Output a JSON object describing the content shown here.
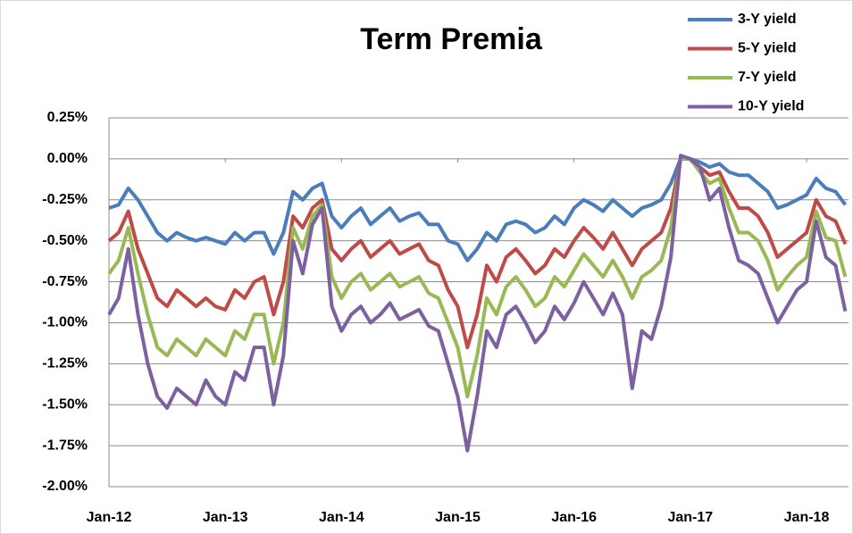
{
  "chart_data": {
    "type": "line",
    "title": "Term Premia",
    "categories": [
      "Jan-12",
      null,
      null,
      null,
      null,
      null,
      null,
      null,
      null,
      null,
      null,
      null,
      "Jan-13",
      null,
      null,
      null,
      null,
      null,
      null,
      null,
      null,
      null,
      null,
      null,
      "Jan-14",
      null,
      null,
      null,
      null,
      null,
      null,
      null,
      null,
      null,
      null,
      null,
      "Jan-15",
      null,
      null,
      null,
      null,
      null,
      null,
      null,
      null,
      null,
      null,
      null,
      "Jan-16",
      null,
      null,
      null,
      null,
      null,
      null,
      null,
      null,
      null,
      null,
      null,
      "Jan-17",
      null,
      null,
      null,
      null,
      null,
      null,
      null,
      null,
      null,
      null,
      null,
      "Jan-18",
      null,
      null,
      null,
      null
    ],
    "series": [
      {
        "name": "3-Y yield",
        "color": "#4a7ebb",
        "values": [
          -0.3,
          -0.28,
          -0.18,
          -0.25,
          -0.35,
          -0.45,
          -0.5,
          -0.45,
          -0.48,
          -0.5,
          -0.48,
          -0.5,
          -0.52,
          -0.45,
          -0.5,
          -0.45,
          -0.45,
          -0.58,
          -0.45,
          -0.2,
          -0.25,
          -0.18,
          -0.15,
          -0.35,
          -0.42,
          -0.35,
          -0.3,
          -0.4,
          -0.35,
          -0.3,
          -0.38,
          -0.35,
          -0.33,
          -0.4,
          -0.4,
          -0.5,
          -0.52,
          -0.62,
          -0.55,
          -0.45,
          -0.5,
          -0.4,
          -0.38,
          -0.4,
          -0.45,
          -0.42,
          -0.35,
          -0.4,
          -0.3,
          -0.25,
          -0.28,
          -0.32,
          -0.25,
          -0.3,
          -0.35,
          -0.3,
          -0.28,
          -0.25,
          -0.15,
          0.0,
          0.0,
          -0.02,
          -0.05,
          -0.03,
          -0.08,
          -0.1,
          -0.1,
          -0.15,
          -0.2,
          -0.3,
          -0.28,
          -0.25,
          -0.22,
          -0.12,
          -0.18,
          -0.2,
          -0.28
        ]
      },
      {
        "name": "5-Y yield",
        "color": "#be4b48",
        "values": [
          -0.5,
          -0.45,
          -0.32,
          -0.55,
          -0.7,
          -0.85,
          -0.9,
          -0.8,
          -0.85,
          -0.9,
          -0.85,
          -0.9,
          -0.92,
          -0.8,
          -0.85,
          -0.75,
          -0.72,
          -0.95,
          -0.75,
          -0.35,
          -0.42,
          -0.3,
          -0.25,
          -0.55,
          -0.62,
          -0.55,
          -0.5,
          -0.6,
          -0.55,
          -0.5,
          -0.58,
          -0.55,
          -0.52,
          -0.62,
          -0.65,
          -0.8,
          -0.9,
          -1.15,
          -0.95,
          -0.65,
          -0.75,
          -0.6,
          -0.55,
          -0.62,
          -0.7,
          -0.65,
          -0.55,
          -0.6,
          -0.5,
          -0.42,
          -0.48,
          -0.55,
          -0.45,
          -0.55,
          -0.65,
          -0.55,
          -0.5,
          -0.45,
          -0.3,
          0.0,
          0.0,
          -0.05,
          -0.1,
          -0.08,
          -0.2,
          -0.3,
          -0.3,
          -0.35,
          -0.45,
          -0.6,
          -0.55,
          -0.5,
          -0.45,
          -0.25,
          -0.35,
          -0.38,
          -0.52
        ]
      },
      {
        "name": "7-Y yield",
        "color": "#98b954",
        "values": [
          -0.7,
          -0.62,
          -0.42,
          -0.7,
          -0.95,
          -1.15,
          -1.2,
          -1.1,
          -1.15,
          -1.2,
          -1.1,
          -1.15,
          -1.2,
          -1.05,
          -1.1,
          -0.95,
          -0.95,
          -1.25,
          -1.0,
          -0.42,
          -0.55,
          -0.35,
          -0.28,
          -0.72,
          -0.85,
          -0.75,
          -0.7,
          -0.8,
          -0.75,
          -0.7,
          -0.78,
          -0.75,
          -0.72,
          -0.82,
          -0.85,
          -1.0,
          -1.15,
          -1.45,
          -1.2,
          -0.85,
          -0.95,
          -0.78,
          -0.72,
          -0.8,
          -0.9,
          -0.85,
          -0.72,
          -0.78,
          -0.68,
          -0.58,
          -0.65,
          -0.72,
          -0.62,
          -0.72,
          -0.85,
          -0.72,
          -0.68,
          -0.62,
          -0.42,
          0.0,
          0.0,
          -0.08,
          -0.15,
          -0.12,
          -0.3,
          -0.45,
          -0.45,
          -0.5,
          -0.62,
          -0.8,
          -0.72,
          -0.65,
          -0.6,
          -0.32,
          -0.48,
          -0.5,
          -0.72
        ]
      },
      {
        "name": "10-Y yield",
        "color": "#7d60a0",
        "values": [
          -0.95,
          -0.85,
          -0.55,
          -0.95,
          -1.25,
          -1.45,
          -1.52,
          -1.4,
          -1.45,
          -1.5,
          -1.35,
          -1.45,
          -1.5,
          -1.3,
          -1.35,
          -1.15,
          -1.15,
          -1.5,
          -1.2,
          -0.5,
          -0.7,
          -0.4,
          -0.3,
          -0.9,
          -1.05,
          -0.95,
          -0.9,
          -1.0,
          -0.95,
          -0.88,
          -0.98,
          -0.95,
          -0.92,
          -1.02,
          -1.05,
          -1.25,
          -1.45,
          -1.78,
          -1.45,
          -1.05,
          -1.15,
          -0.95,
          -0.9,
          -1.0,
          -1.12,
          -1.05,
          -0.9,
          -0.98,
          -0.88,
          -0.75,
          -0.85,
          -0.95,
          -0.82,
          -0.95,
          -1.4,
          -1.05,
          -1.1,
          -0.9,
          -0.6,
          0.02,
          0.0,
          -0.05,
          -0.25,
          -0.18,
          -0.42,
          -0.62,
          -0.65,
          -0.7,
          -0.85,
          -1.0,
          -0.9,
          -0.8,
          -0.75,
          -0.38,
          -0.6,
          -0.65,
          -0.93
        ]
      }
    ],
    "ylim": [
      -2.0,
      0.25
    ],
    "yticks": [
      {
        "value": 0.25,
        "label": "0.25%"
      },
      {
        "value": 0,
        "label": "0.00%"
      },
      {
        "value": -0.25,
        "label": "-0.25%"
      },
      {
        "value": -0.5,
        "label": "-0.50%"
      },
      {
        "value": -0.75,
        "label": "-0.75%"
      },
      {
        "value": -1.0,
        "label": "-1.00%"
      },
      {
        "value": -1.25,
        "label": "-1.25%"
      },
      {
        "value": -1.5,
        "label": "-1.50%"
      },
      {
        "value": -1.75,
        "label": "-1.75%"
      },
      {
        "value": -2.0,
        "label": "-2.00%"
      }
    ],
    "grid": true,
    "legend": "top-right"
  }
}
